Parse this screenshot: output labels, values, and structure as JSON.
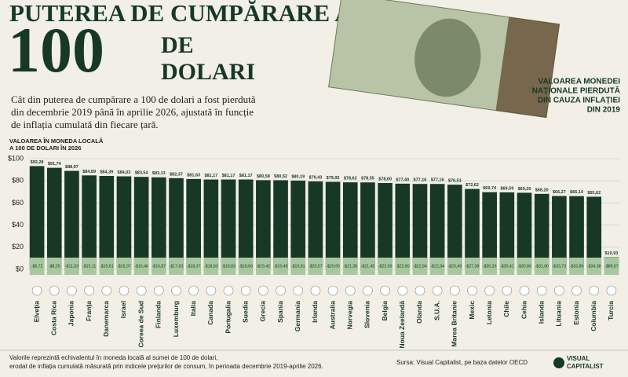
{
  "title_line1": "PUTEREA DE CUMPĂRARE A",
  "title_number": "100",
  "title_line2": "DE",
  "title_line3": "DOLARI",
  "subtitle": [
    "Cât din puterea de cumpărare a 100 de dolari a fost pierdută",
    "din decembrie 2019 până în aprilie 2026, ajustată în funcție",
    "de inflația cumulată din fiecare țară."
  ],
  "annotation": [
    "VALOAREA MONEDEI",
    "NAȚIONALE PIERDUTĂ",
    "DIN CAUZA INFLAȚIEI",
    "DIN 2019"
  ],
  "footer_note": [
    "Valorile reprezintă echivalentul în moneda locală al sumei de 100 de dolari,",
    "erodat de inflația cumulată măsurată prin indicele prețurilor de consum, în perioada decembrie 2019-aprilie 2026."
  ],
  "source": "Sursa: Visual Capitalist, pe baza datelor OECD",
  "brand": [
    "VISUAL",
    "CAPITALIST"
  ],
  "chart_data": {
    "type": "bar",
    "y_label": [
      "VALOAREA ÎN MONEDA LOCALĂ",
      "A 100 DE DOLARI ÎN 2026"
    ],
    "categories": [
      "Elveția",
      "Costa Rica",
      "Japonia",
      "Franța",
      "Danemarca",
      "Israel",
      "Coreea de Sud",
      "Finlanda",
      "Luxemburg",
      "Italia",
      "Canada",
      "Portugalia",
      "Suedia",
      "Grecia",
      "Spania",
      "Germania",
      "Irlanda",
      "Australia",
      "Norvegia",
      "Slovenia",
      "Belgia",
      "Noua Zeelandă",
      "Olanda",
      "S.U.A.",
      "Marea Britanie",
      "Mexic",
      "Letonia",
      "Chile",
      "Cehia",
      "Islanda",
      "Lituania",
      "Estonia",
      "Columbia",
      "Turcia"
    ],
    "series": [
      {
        "color": "#173824",
        "values": [
          93.28,
          91.74,
          88.97,
          84.89,
          84.39,
          84.03,
          83.54,
          83.13,
          82.37,
          81.63,
          81.17,
          81.17,
          81.17,
          80.58,
          80.52,
          80.19,
          79.43,
          79.05,
          78.62,
          78.55,
          78.0,
          77.4,
          77.16,
          77.16,
          76.51,
          72.62,
          69.74,
          69.59,
          69.2,
          68.2,
          66.27,
          66.14,
          65.62,
          10.93
        ],
        "value_labels": [
          "$93,28",
          "$91,74",
          "$88,97",
          "$84,89",
          "$84,39",
          "$84,03",
          "$83,54",
          "$83,13",
          "$82,37",
          "$81,63",
          "$81,17",
          "$81,17",
          "$81,17",
          "$80,58",
          "$80,52",
          "$80,19",
          "$79,43",
          "$79,05",
          "$78,62",
          "$78,55",
          "$78,00",
          "$77,40",
          "$77,16",
          "$77,16",
          "$76,51",
          "$72,62",
          "$69,74",
          "$69,59",
          "$69,20",
          "$68,20",
          "$66,27",
          "$66,14",
          "$65,62",
          "$10,93"
        ]
      }
    ],
    "losses": {
      "color": "#a8c7a0",
      "values": [
        -6.72,
        -8.26,
        -11.03,
        -15.11,
        -15.61,
        -15.97,
        -16.46,
        -16.87,
        -17.63,
        -18.37,
        -18.83,
        -18.83,
        -18.83,
        -19.42,
        -19.48,
        -19.81,
        -20.57,
        -20.95,
        -21.38,
        -21.45,
        -22.0,
        -22.6,
        -22.84,
        -22.84,
        -23.49,
        -27.38,
        -30.26,
        -30.41,
        -30.8,
        -31.8,
        -33.73,
        -33.86,
        -34.38,
        -89.07
      ],
      "value_labels": [
        "-$6,72",
        "-$8,26",
        "-$11,03",
        "-$15,11",
        "-$15,61",
        "-$15,97",
        "-$16,46",
        "-$16,87",
        "-$17,63",
        "-$18,37",
        "-$18,83",
        "-$18,83",
        "-$18,83",
        "-$19,42",
        "-$19,48",
        "-$19,81",
        "-$20,57",
        "-$20,95",
        "-$21,38",
        "-$21,45",
        "-$22,00",
        "-$22,60",
        "-$22,84",
        "-$22,84",
        "-$23,49",
        "-$27,38",
        "-$30,26",
        "-$30,41",
        "-$30,80",
        "-$31,80",
        "-$33,73",
        "-$33,86",
        "-$34,38",
        "-$89,07"
      ]
    },
    "ylim": [
      0,
      100
    ],
    "yticks": [
      {
        "value": 0,
        "label": "$0"
      },
      {
        "value": 20,
        "label": "$20"
      },
      {
        "value": 40,
        "label": "$40"
      },
      {
        "value": 60,
        "label": "$60"
      },
      {
        "value": 80,
        "label": "$80"
      },
      {
        "value": 100,
        "label": "$100"
      }
    ],
    "grid": true
  }
}
